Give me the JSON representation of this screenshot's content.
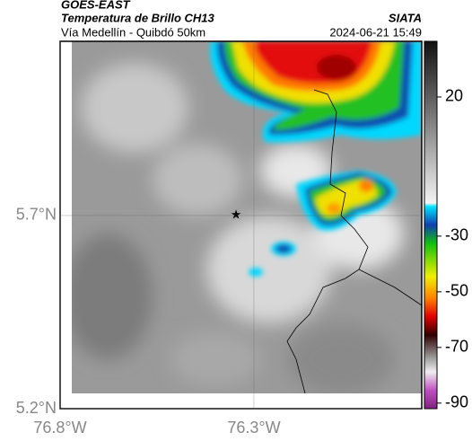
{
  "chart_data": {
    "type": "map",
    "title": "GOES-EAST",
    "subtitle": "Temperatura de Brillo CH13",
    "source": "SIATA",
    "location": "Vía Medellín - Quibdó 50km",
    "datetime": "2024-06-21 15:49",
    "xlim": [
      -76.8,
      -75.867
    ],
    "ylim": [
      5.2,
      6.151
    ],
    "xticks": [
      {
        "value": -76.8,
        "label": "76.8°W"
      },
      {
        "value": -76.3,
        "label": "76.3°W"
      }
    ],
    "yticks": [
      {
        "value": 5.2,
        "label": "5.2°N"
      },
      {
        "value": 5.7,
        "label": "5.7°N"
      }
    ],
    "grid": true,
    "colorbar": {
      "lim": [
        40,
        -92
      ],
      "ticks": [
        20,
        -30,
        -50,
        -70,
        -90
      ]
    }
  }
}
